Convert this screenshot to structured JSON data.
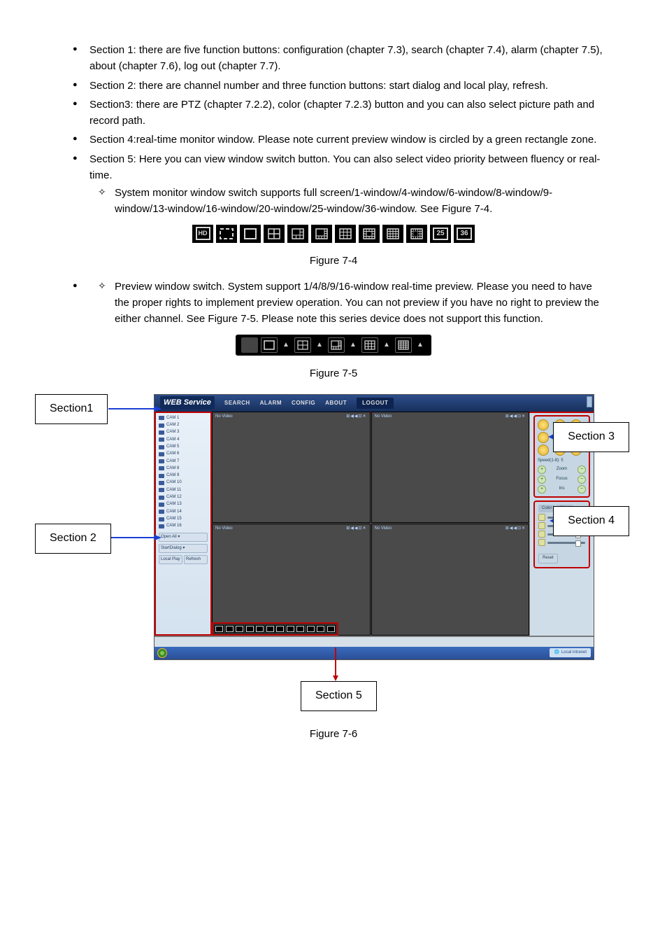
{
  "sections_text": {
    "s1": "Section 1: there are five function buttons: configuration (chapter 7.3), search (chapter 7.4), alarm (chapter 7.5), about (chapter 7.6), log out (chapter 7.7).",
    "s2": "Section 2: there are channel number and three function buttons: start dialog and local play, refresh.",
    "s3": "Section3: there are PTZ (chapter 7.2.2), color (chapter 7.2.3) button and you can also select picture path and record path.",
    "s4": "Section 4:real-time monitor window. Please note current preview window is circled by a green rectangle zone.",
    "s5": "Section 5: Here you can view window switch button.  You can also select video priority between fluency or real-time.",
    "s5_sub1": "System monitor window switch supports full screen/1-window/4-window/6-window/8-window/9-window/13-window/16-window/20-window/25-window/36-window. See Figure 7-4.",
    "s5_sub2": "Preview window switch. System support 1/4/8/9/16-window real-time preview. Please you need to have the proper rights to implement preview operation. You can not preview if you have no right to preview the either channel. See Figure 7-5. Please note this series device does not support this function."
  },
  "figure_labels": {
    "f74": "Figure 7-4",
    "f75": "Figure 7-5",
    "f76": "Figure 7-6"
  },
  "section_labels": {
    "sec1": "Section1",
    "sec2": "Section 2",
    "sec3": "Section 3",
    "sec4": "Section 4",
    "sec5": "Section 5"
  },
  "icons_74": [
    "HD",
    "fullscreen",
    "1",
    "4",
    "6",
    "8",
    "9",
    "13",
    "16",
    "20",
    "25",
    "36"
  ],
  "nav": {
    "logo": "WEB Service",
    "items": [
      "SEARCH",
      "ALARM",
      "CONFIG",
      "ABOUT",
      "LOGOUT"
    ]
  },
  "cams": [
    "CAM 1",
    "CAM 2",
    "CAM 3",
    "CAM 4",
    "CAM 5",
    "CAM 6",
    "CAM 7",
    "CAM 8",
    "CAM 9",
    "CAM 10",
    "CAM 11",
    "CAM 12",
    "CAM 13",
    "CAM 14",
    "CAM 15",
    "CAM 16"
  ],
  "left_panel_buttons": [
    "Open All ▾",
    "StartDialog ▾",
    "Local Play",
    "Refresh"
  ],
  "ptz": {
    "speed_label": "Speed(1-8): 5",
    "rows": [
      "Zoom",
      "Focus",
      "Iris"
    ]
  },
  "color": {
    "tabs": [
      "Color",
      "More"
    ],
    "reset": "Reset"
  },
  "video_tiles": {
    "label": "No Video",
    "icons": "⊞◀◀⊡✕"
  },
  "taskbar_tray": "Local intranet",
  "colors": {
    "top_nav_bg": "#17305c",
    "arrow": "#1a3fd6",
    "highlight_border": "#c00000",
    "left_panel_bg": "#d4e2ef",
    "right_panel_bg": "#cfdde9",
    "video_bg": "#4a4a4a",
    "ptz_button": "#e0b030",
    "taskbar": "#2a4f95"
  }
}
